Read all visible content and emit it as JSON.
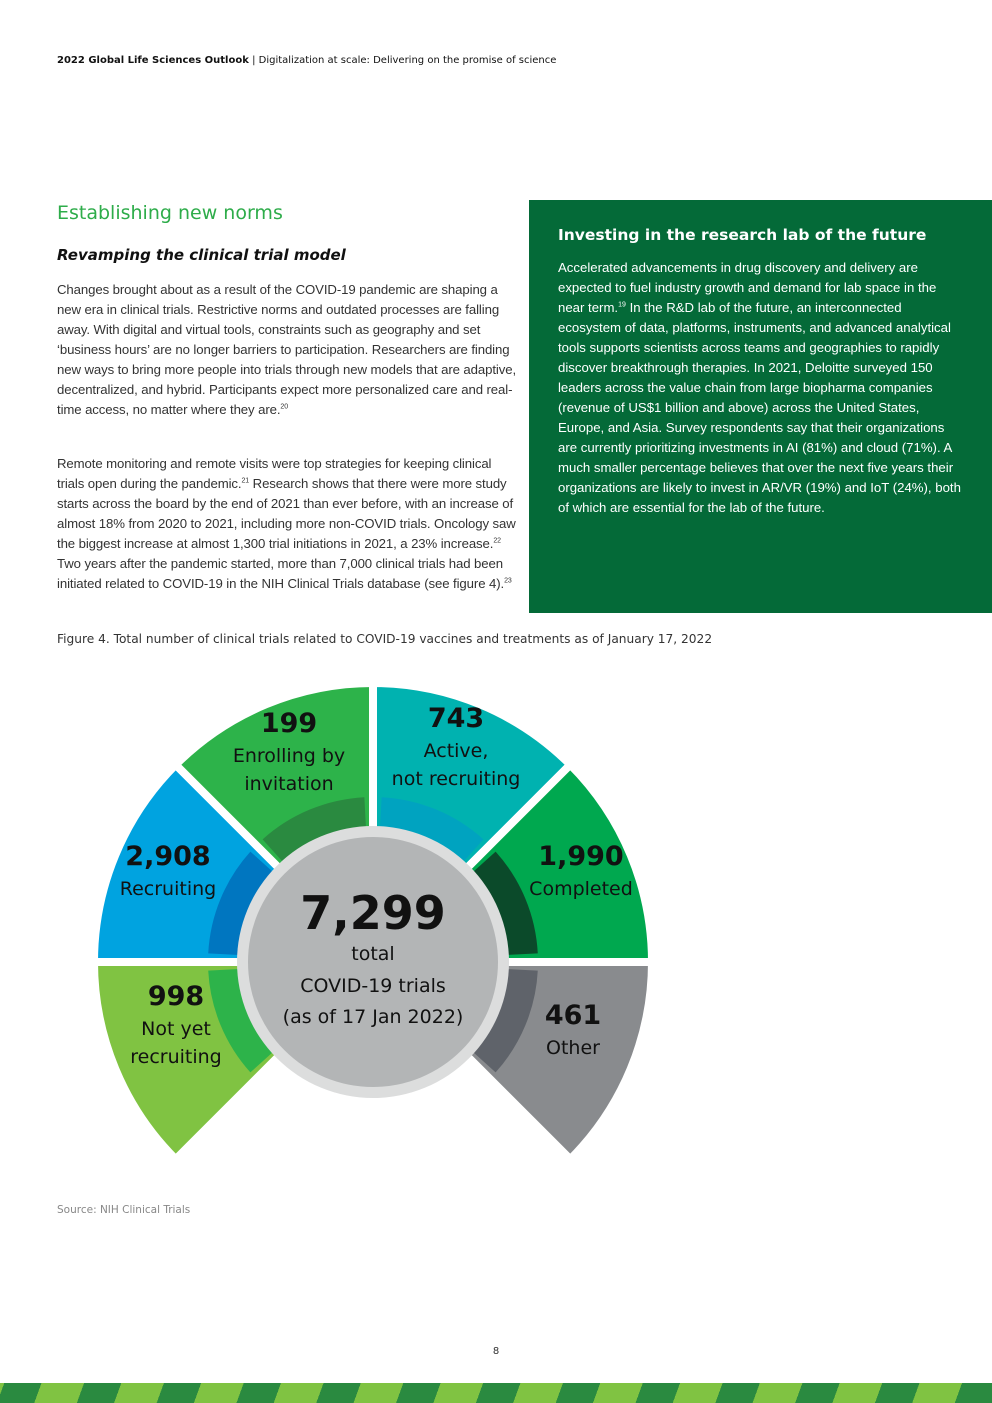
{
  "header": {
    "report": "2022 Global Life Sciences Outlook",
    "separator": "|",
    "subtitle": "Digitalization at scale: Delivering on the promise of science"
  },
  "section_title": "Establishing new norms",
  "subsection_title": "Revamping the clinical trial model",
  "paragraphs": [
    "Changes brought about as a result of the COVID-19 pandemic are shaping a new era in clinical trials. Restrictive norms and outdated processes are falling away. With digital and virtual tools, constraints such as geography and set ‘business hours’ are no longer barriers to participation. Researchers are finding new ways to bring more people into trials through new models that are adaptive, decentralized, and hybrid. Participants expect more personalized care and real-time access, no matter where they are.",
    "Remote monitoring and remote visits were top strategies for keeping clinical trials open during the pandemic.",
    " Research shows that there were more study starts across the board by the end of 2021 than ever before, with an increase of almost 18% from 2020 to 2021, including more non-COVID trials. Oncology saw the biggest increase at almost 1,300 trial initiations in 2021, a 23% increase.",
    " Two years after the pandemic started, more than 7,000 clinical trials had been initiated related to COVID-19 in the NIH Clinical Trials database (see figure 4)."
  ],
  "footnotes": {
    "p1": "20",
    "p2a": "21",
    "p2b": "22",
    "p2c": "23",
    "box": "19"
  },
  "sidebar": {
    "title": "Investing in the research lab of the future",
    "text_a": "Accelerated advancements in drug discovery and delivery are expected to fuel industry growth and demand for lab space in the near term.",
    "text_b": " In the R&D lab of the future, an interconnected ecosystem of data, platforms, instruments, and advanced analytical tools supports scientists across teams and geographies to rapidly discover breakthrough therapies. In 2021, Deloitte surveyed 150 leaders across the value chain from large biopharma companies (revenue of US$1 billion and above) across the United States, Europe, and Asia. Survey respondents say that their organizations are currently prioritizing investments in AI (81%) and cloud (71%). A much smaller percentage believes that over the next five years their organizations are likely to invest in AR/VR (19%) and IoT (24%), both of which are essential for the lab of the future.",
    "bg_color": "#046a38"
  },
  "figure_caption": "Figure 4. Total number of clinical trials related to COVID-19 vaccines and treatments as of January 17, 2022",
  "chart_data": {
    "type": "pie",
    "center": {
      "value": "7,299",
      "line1": "total",
      "line2": "COVID-19 trials",
      "line3": "(as of 17 Jan 2022)"
    },
    "segments": [
      {
        "value": "2,908",
        "label": [
          "Recruiting"
        ],
        "color": "#00a3e0",
        "dark": "#0076c0"
      },
      {
        "value": "199",
        "label": [
          "Enrolling by",
          "invitation"
        ],
        "color": "#2db34a",
        "dark": "#2a8a40"
      },
      {
        "value": "743",
        "label": [
          "Active,",
          "not recruiting"
        ],
        "color": "#00b2b0",
        "dark": "#00a3c0"
      },
      {
        "value": "1,990",
        "label": [
          "Completed"
        ],
        "color": "#00a84f",
        "dark": "#0b4a2a"
      },
      {
        "value": "461",
        "label": [
          "Other"
        ],
        "color": "#898b8e",
        "dark": "#5f636a"
      },
      {
        "value": "998",
        "label": [
          "Not yet",
          "recruiting"
        ],
        "color": "#80c342",
        "dark": "#2db34a"
      }
    ]
  },
  "source": "Source: NIH Clinical Trials",
  "page_number": "8"
}
